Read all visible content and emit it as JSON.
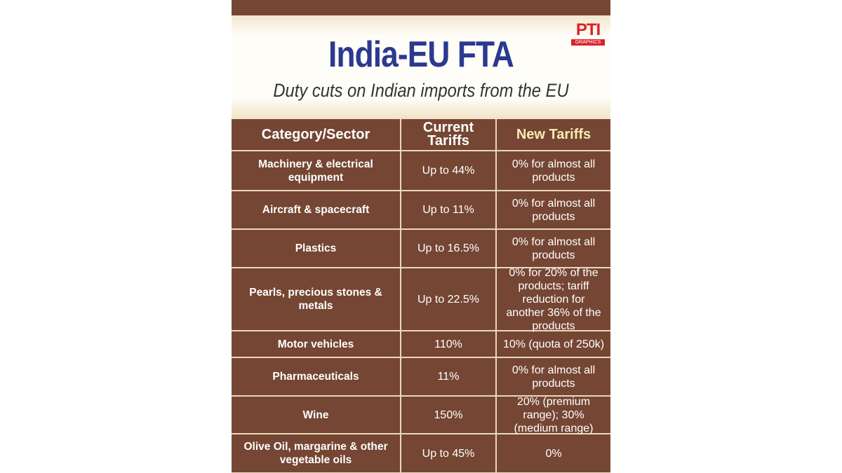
{
  "header": {
    "title": "India-EU FTA",
    "subtitle": "Duty cuts on Indian imports from the EU"
  },
  "logo": {
    "text": "PTI",
    "subtext": "GRAPHICS"
  },
  "table": {
    "columns": [
      "Category/Sector",
      "Current Tariffs",
      "New Tariffs"
    ],
    "rows": [
      [
        "Machinery & electrical equipment",
        "Up to 44%",
        "0% for almost all products"
      ],
      [
        "Aircraft & spacecraft",
        "Up to 11%",
        "0% for almost all products"
      ],
      [
        "Plastics",
        "Up to 16.5%",
        "0% for almost all products"
      ],
      [
        "Pearls, precious stones & metals",
        "Up to 22.5%",
        "0% for 20% of the products; tariff reduction for another 36% of the products"
      ],
      [
        "Motor vehicles",
        "110%",
        "10% (quota of 250k)"
      ],
      [
        "Pharmaceuticals",
        "11%",
        "0% for almost all products"
      ],
      [
        "Wine",
        "150%",
        "20% (premium range); 30% (medium range)"
      ],
      [
        "Olive Oil, margarine & other vegetable oils",
        "Up to 45%",
        "0%"
      ]
    ]
  }
}
